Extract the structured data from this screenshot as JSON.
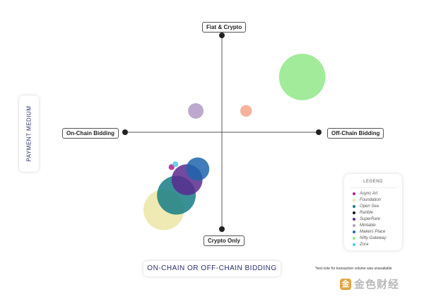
{
  "chart_data": {
    "type": "scatter",
    "title": "",
    "xlabel": "ON-CHAIN OR OFF-CHAIN BIDDING",
    "ylabel": "PAYMENT MEDIUM",
    "xlim": [
      -1,
      1
    ],
    "ylim": [
      -1,
      1
    ],
    "axis_ends": {
      "top": "Fiat & Crypto",
      "bottom": "Crypto Only",
      "left": "On-Chain Bidding",
      "right": "Off-Chain Bidding"
    },
    "grid": false,
    "legend": {
      "title": "LEGEND",
      "placement": "bottom-right"
    },
    "series": [
      {
        "name": "Async Art",
        "color": "#b41e8c",
        "x": -0.52,
        "y": -0.36,
        "r": 0.03
      },
      {
        "name": "Foundation",
        "color": "#ece5a6",
        "x": -0.6,
        "y": -0.8,
        "r": 0.21
      },
      {
        "name": "Open Sea",
        "color": "#167c84",
        "x": -0.47,
        "y": -0.65,
        "r": 0.2
      },
      {
        "name": "Rarible",
        "color": "#161616",
        "x": null,
        "y": null,
        "r": null
      },
      {
        "name": "SuperRare",
        "color": "#5b2a8f",
        "x": -0.36,
        "y": -0.49,
        "r": 0.16
      },
      {
        "name": "Mintable",
        "color": "#b09ac4",
        "x": -0.27,
        "y": 0.22,
        "r": 0.08
      },
      {
        "name": "Makers Place",
        "color": "#1f65ad",
        "x": -0.25,
        "y": -0.38,
        "r": 0.12
      },
      {
        "name": "Nifty Gateway",
        "color": "#90e789",
        "x": 0.83,
        "y": 0.57,
        "r": 0.24
      },
      {
        "name": "Zora",
        "color": "#4ccfe0",
        "x": -0.48,
        "y": -0.33,
        "r": 0.03
      },
      {
        "name": "",
        "color": "#f4a48a",
        "x": 0.25,
        "y": 0.22,
        "r": 0.06
      }
    ],
    "annotations": [
      "*test note for transaction volume was unavailable"
    ]
  },
  "watermark": {
    "logo_char": "金",
    "text": "金色财经"
  }
}
